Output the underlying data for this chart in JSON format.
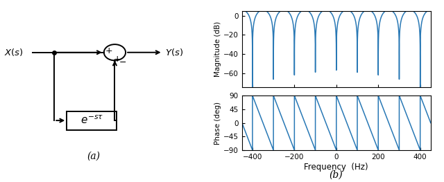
{
  "freq_range": [
    -450,
    450
  ],
  "tau": 0.01,
  "mag_ylim": [
    -75,
    5
  ],
  "mag_yticks": [
    0,
    -20,
    -40,
    -60
  ],
  "phase_ylim": [
    -90,
    90
  ],
  "phase_yticks": [
    -90,
    -45,
    0,
    45,
    90
  ],
  "freq_xticks": [
    -400,
    -200,
    0,
    200,
    400
  ],
  "xlabel": "Frequency  (Hz)",
  "ylabel_mag": "Magnitude (dB)",
  "ylabel_phase": "Phase (deg)",
  "label_a": "(a)",
  "label_b": "(b)",
  "line_color": "#2878b5",
  "line_width": 1.1,
  "background_color": "#ffffff",
  "plot_bg": "#ffffff"
}
